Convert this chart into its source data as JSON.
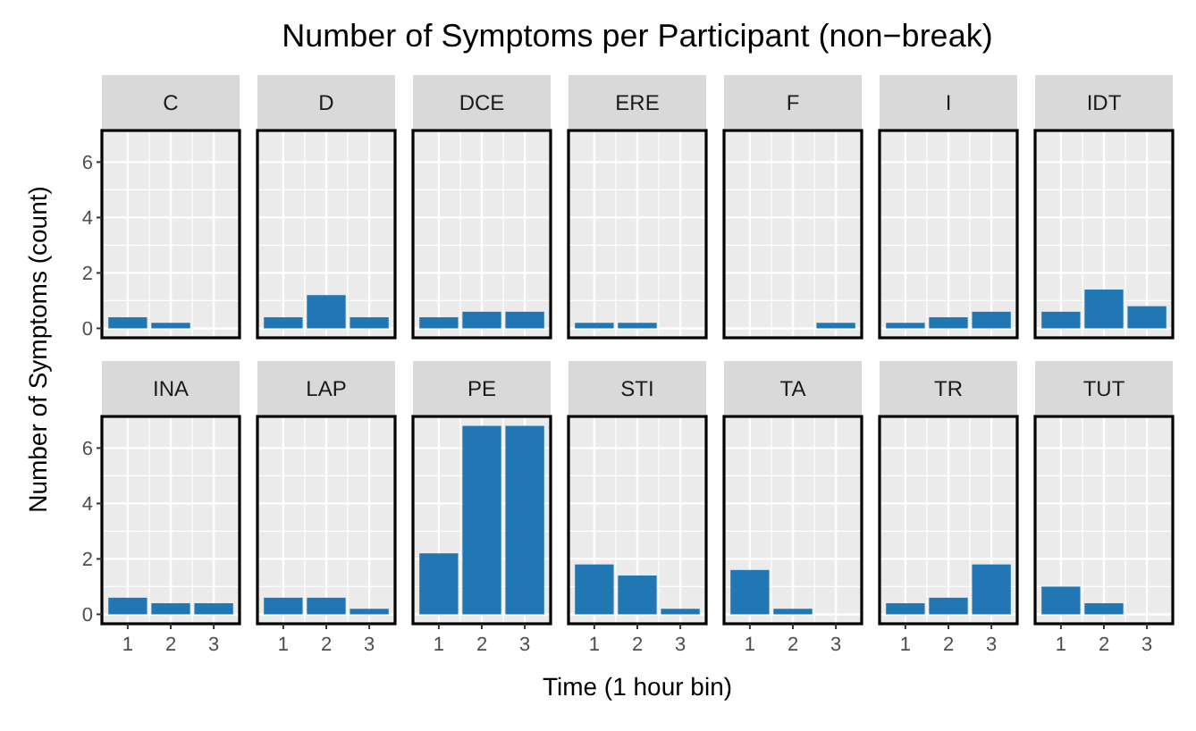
{
  "chart_data": [
    {
      "type": "bar",
      "title": "C",
      "annotations": [
        "Number of Symptoms per Participant (non−break)"
      ],
      "categories": [
        "1",
        "2",
        "3"
      ],
      "values": [
        0.4,
        0.2,
        0
      ],
      "color": "#2077b4",
      "ylim": [
        -0.34,
        7.14
      ],
      "yticks": [
        0,
        2,
        4,
        6
      ],
      "grid": true,
      "tick_labels": "y"
    },
    {
      "type": "bar",
      "title": "D",
      "categories": [
        "1",
        "2",
        "3"
      ],
      "values": [
        0.4,
        1.2,
        0.4
      ],
      "color": "#2077b4",
      "ylim": [
        -0.34,
        7.14
      ],
      "yticks": [
        0,
        2,
        4,
        6
      ],
      "grid": true,
      "tick_labels": false
    },
    {
      "type": "bar",
      "title": "DCE",
      "categories": [
        "1",
        "2",
        "3"
      ],
      "values": [
        0.4,
        0.6,
        0.6
      ],
      "color": "#2077b4",
      "ylim": [
        -0.34,
        7.14
      ],
      "yticks": [
        0,
        2,
        4,
        6
      ],
      "grid": true,
      "tick_labels": false
    },
    {
      "type": "bar",
      "title": "ERE",
      "categories": [
        "1",
        "2",
        "3"
      ],
      "values": [
        0.2,
        0.2,
        0
      ],
      "color": "#2077b4",
      "ylim": [
        -0.34,
        7.14
      ],
      "yticks": [
        0,
        2,
        4,
        6
      ],
      "grid": true,
      "tick_labels": false
    },
    {
      "type": "bar",
      "title": "F",
      "categories": [
        "1",
        "2",
        "3"
      ],
      "values": [
        0,
        0,
        0.2
      ],
      "color": "#2077b4",
      "ylim": [
        -0.34,
        7.14
      ],
      "yticks": [
        0,
        2,
        4,
        6
      ],
      "grid": true,
      "tick_labels": false
    },
    {
      "type": "bar",
      "title": "I",
      "categories": [
        "1",
        "2",
        "3"
      ],
      "values": [
        0.2,
        0.4,
        0.6
      ],
      "color": "#2077b4",
      "ylim": [
        -0.34,
        7.14
      ],
      "yticks": [
        0,
        2,
        4,
        6
      ],
      "grid": true,
      "tick_labels": false
    },
    {
      "type": "bar",
      "title": "IDT",
      "categories": [
        "1",
        "2",
        "3"
      ],
      "values": [
        0.6,
        1.4,
        0.8
      ],
      "color": "#2077b4",
      "ylim": [
        -0.34,
        7.14
      ],
      "yticks": [
        0,
        2,
        4,
        6
      ],
      "grid": true,
      "tick_labels": false
    },
    {
      "type": "bar",
      "title": "INA",
      "ylabel": "Number of Symptoms (count)",
      "categories": [
        "1",
        "2",
        "3"
      ],
      "values": [
        0.6,
        0.4,
        0.4
      ],
      "color": "#2077b4",
      "ylim": [
        -0.34,
        7.14
      ],
      "yticks": [
        0,
        2,
        4,
        6
      ],
      "grid": true
    },
    {
      "type": "bar",
      "title": "LAP",
      "categories": [
        "1",
        "2",
        "3"
      ],
      "values": [
        0.6,
        0.6,
        0.2
      ],
      "color": "#2077b4",
      "ylim": [
        -0.34,
        7.14
      ],
      "yticks": [
        0,
        2,
        4,
        6
      ],
      "grid": true,
      "tick_labels": "x"
    },
    {
      "type": "bar",
      "title": "PE",
      "categories": [
        "1",
        "2",
        "3"
      ],
      "values": [
        2.2,
        6.8,
        6.8
      ],
      "color": "#2077b4",
      "ylim": [
        -0.34,
        7.14
      ],
      "yticks": [
        0,
        2,
        4,
        6
      ],
      "grid": true,
      "tick_labels": "x"
    },
    {
      "type": "bar",
      "title": "STI",
      "xlabel": "Time (1 hour bin)",
      "categories": [
        "1",
        "2",
        "3"
      ],
      "values": [
        1.8,
        1.4,
        0.2
      ],
      "color": "#2077b4",
      "ylim": [
        -0.34,
        7.14
      ],
      "yticks": [
        0,
        2,
        4,
        6
      ],
      "grid": true,
      "tick_labels": "x"
    },
    {
      "type": "bar",
      "title": "TA",
      "categories": [
        "1",
        "2",
        "3"
      ],
      "values": [
        1.6,
        0.2,
        0
      ],
      "color": "#2077b4",
      "ylim": [
        -0.34,
        7.14
      ],
      "yticks": [
        0,
        2,
        4,
        6
      ],
      "grid": true,
      "tick_labels": "x"
    },
    {
      "type": "bar",
      "title": "TR",
      "categories": [
        "1",
        "2",
        "3"
      ],
      "values": [
        0.4,
        0.6,
        1.8
      ],
      "color": "#2077b4",
      "ylim": [
        -0.34,
        7.14
      ],
      "yticks": [
        0,
        2,
        4,
        6
      ],
      "grid": true,
      "tick_labels": "x"
    },
    {
      "type": "bar",
      "title": "TUT",
      "categories": [
        "1",
        "2",
        "3"
      ],
      "values": [
        1.0,
        0.4,
        0
      ],
      "color": "#2077b4",
      "ylim": [
        -0.34,
        7.14
      ],
      "yticks": [
        0,
        2,
        4,
        6
      ],
      "grid": true,
      "tick_labels": "x"
    }
  ]
}
